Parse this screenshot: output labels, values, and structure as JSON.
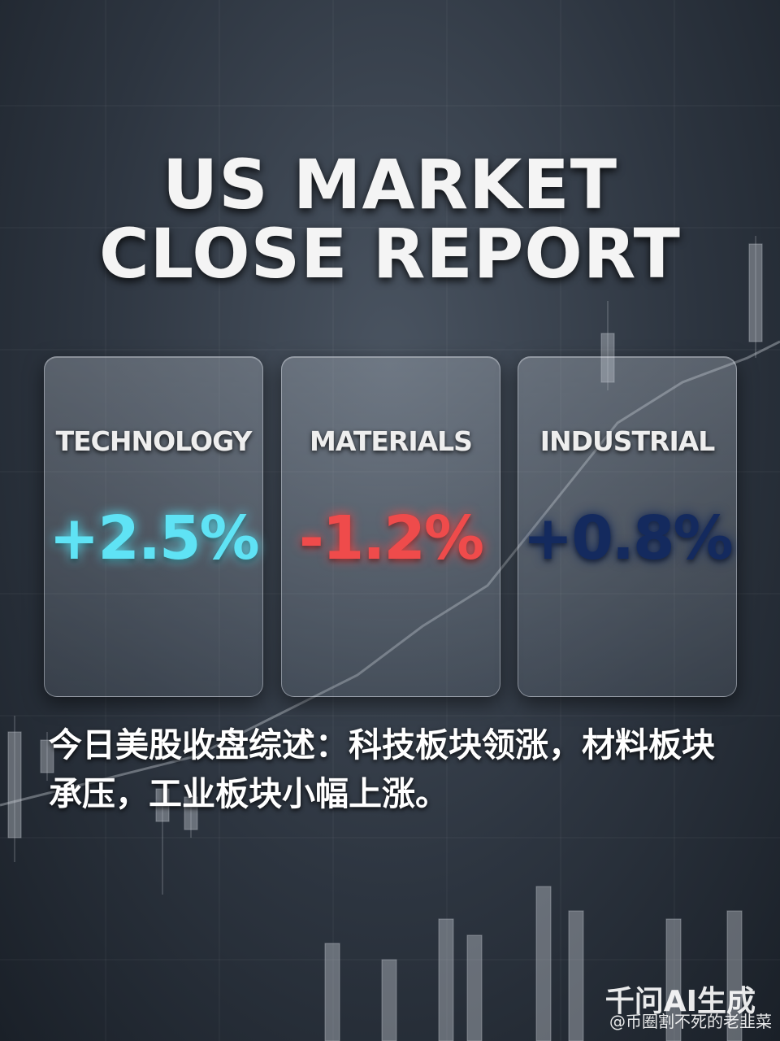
{
  "title": {
    "line1": "US MARKET",
    "line2": "CLOSE REPORT"
  },
  "cards": [
    {
      "label": "TECHNOLOGY",
      "value": "+2.5%",
      "color": "#5fe3f5"
    },
    {
      "label": "MATERIALS",
      "value": "-1.2%",
      "color": "#ef4b4b"
    },
    {
      "label": "INDUSTRIAL",
      "value": "+0.8%",
      "color": "#142a5e"
    }
  ],
  "summary": "今日美股收盘综述：科技板块领涨，材料板块承压，工业板块小幅上涨。",
  "watermark": {
    "brand": "千问AI生成",
    "user": "@币圈割不死的老韭菜"
  }
}
